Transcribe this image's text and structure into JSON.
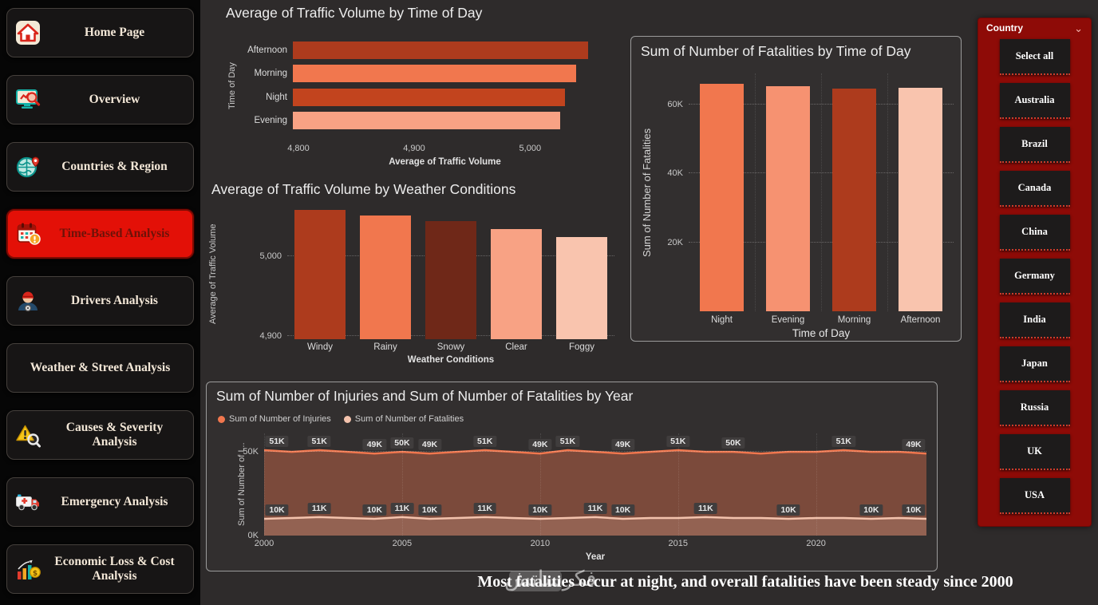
{
  "theme": {
    "background": "#2e2b2b",
    "sidebar_background": "#060606",
    "active_nav_red": "#e31007",
    "slicer_red": "#8e0b07",
    "panel_border": "#9b9b9b",
    "accent_salmon": "#f1774e",
    "accent_dark_rust": "#ad3b1d",
    "accent_pale_pink": "#f9c4ae"
  },
  "sidebar": {
    "items": [
      {
        "label": "Home Page",
        "icon": "home-icon",
        "active": false
      },
      {
        "label": "Overview",
        "icon": "overview-icon",
        "active": false
      },
      {
        "label": "Countries & Region",
        "icon": "globe-icon",
        "active": false
      },
      {
        "label": "Time-Based Analysis",
        "icon": "calendar-icon",
        "active": true
      },
      {
        "label": "Drivers Analysis",
        "icon": "driver-icon",
        "active": false
      },
      {
        "label": "Weather & Street Analysis",
        "icon": "",
        "active": false
      },
      {
        "label": "Causes & Severity Analysis",
        "icon": "warning-icon",
        "active": false
      },
      {
        "label": "Emergency Analysis",
        "icon": "ambulance-icon",
        "active": false
      },
      {
        "label": "Economic Loss & Cost Analysis",
        "icon": "economic-icon",
        "active": false
      }
    ]
  },
  "slicer": {
    "title": "Country",
    "chevron": "⌄",
    "items": [
      "Select all",
      "Australia",
      "Brazil",
      "Canada",
      "China",
      "Germany",
      "India",
      "Japan",
      "Russia",
      "UK",
      "USA"
    ]
  },
  "insight": "Most fatalities occur at night, and overall fatalities have been steady since 2000",
  "watermark": "فكرساتش",
  "chart_data": [
    {
      "id": "traffic_by_time",
      "type": "bar",
      "orientation": "horizontal",
      "title": "Average of Traffic Volume by Time of Day",
      "xlabel": "Average of Traffic Volume",
      "ylabel": "Time of Day",
      "categories": [
        "Afternoon",
        "Morning",
        "Night",
        "Evening"
      ],
      "values": [
        5050,
        5040,
        5031,
        5027
      ],
      "bar_colors": [
        "#ad3b1d",
        "#f1774e",
        "#c2441e",
        "#f8a284"
      ],
      "xlim": [
        4800,
        5053
      ],
      "x_ticks": [
        {
          "v": 4800,
          "label": "4,800"
        },
        {
          "v": 4900,
          "label": "4,900"
        },
        {
          "v": 5000,
          "label": "5,000"
        }
      ]
    },
    {
      "id": "traffic_by_weather",
      "type": "bar",
      "orientation": "vertical",
      "title": "Average of Traffic Volume by Weather Conditions",
      "xlabel": "Weather Conditions",
      "ylabel": "Average of Traffic Volume",
      "categories": [
        "Windy",
        "Rainy",
        "Snowy",
        "Clear",
        "Foggy"
      ],
      "values": [
        5058,
        5051,
        5044,
        5034,
        5024
      ],
      "bar_colors": [
        "#ad3b1d",
        "#f1774e",
        "#6f2818",
        "#f8a284",
        "#f9c4ae"
      ],
      "ylim": [
        4896,
        5060
      ],
      "y_ticks": [
        {
          "v": 5000,
          "label": "5,000"
        },
        {
          "v": 4900,
          "label": "4,900"
        }
      ]
    },
    {
      "id": "fatalities_by_time_of_day",
      "type": "bar",
      "orientation": "vertical",
      "title": "Sum of Number of Fatalities by Time of Day",
      "xlabel": "Time of Day",
      "ylabel": "Sum of Number of Fatalities",
      "categories": [
        "Night",
        "Evening",
        "Morning",
        "Afternoon"
      ],
      "values": [
        66000,
        65200,
        64600,
        64900
      ],
      "bar_colors": [
        "#f1774e",
        "#f69271",
        "#ad3b1d",
        "#f9c4ae"
      ],
      "ylim": [
        0,
        69000
      ],
      "y_ticks": [
        {
          "v": 60000,
          "label": "60K"
        },
        {
          "v": 40000,
          "label": "40K"
        },
        {
          "v": 20000,
          "label": "20K"
        }
      ]
    },
    {
      "id": "injuries_and_fatalities_by_year",
      "type": "area",
      "title": "Sum of Number of Injuries and Sum of Number of Fatalities by Year",
      "xlabel": "Year",
      "ylabel": "Sum of Number of I...",
      "years": [
        2000,
        2001,
        2002,
        2003,
        2004,
        2005,
        2006,
        2007,
        2008,
        2009,
        2010,
        2011,
        2012,
        2013,
        2014,
        2015,
        2016,
        2017,
        2018,
        2019,
        2020,
        2021,
        2022,
        2023,
        2024
      ],
      "x_ticks": [
        2000,
        2005,
        2010,
        2015,
        2020
      ],
      "ylim": [
        0,
        61000
      ],
      "y_ticks": [
        {
          "v": 50000,
          "label": "50K"
        },
        {
          "v": 0,
          "label": "0K"
        }
      ],
      "series": [
        {
          "name": "Sum of Number of Injuries",
          "color": "#f1774e",
          "fill": "rgba(241,119,78,0.38)",
          "values": [
            51000,
            50000,
            51000,
            50000,
            49000,
            50000,
            49000,
            50000,
            51000,
            50000,
            49000,
            51000,
            50000,
            49000,
            50000,
            51000,
            50000,
            50000,
            49000,
            50000,
            50000,
            51000,
            50000,
            50000,
            49000
          ],
          "labels": [
            "51K",
            "",
            "51K",
            "",
            "49K",
            "50K",
            "49K",
            "",
            "51K",
            "",
            "49K",
            "51K",
            "",
            "49K",
            "",
            "51K",
            "",
            "50K",
            "",
            "",
            "",
            "51K",
            "",
            "",
            "49K"
          ]
        },
        {
          "name": "Sum of Number of Fatalities",
          "color": "#f4c3ad",
          "fill": "rgba(244,195,173,0.20)",
          "values": [
            10000,
            10500,
            11000,
            10500,
            10000,
            11000,
            10000,
            10500,
            11000,
            10500,
            10000,
            10500,
            11000,
            10000,
            10500,
            10500,
            11000,
            10500,
            10500,
            10000,
            10500,
            10500,
            10000,
            10500,
            10000
          ],
          "labels": [
            "10K",
            "",
            "11K",
            "",
            "10K",
            "11K",
            "10K",
            "",
            "11K",
            "",
            "10K",
            "",
            "11K",
            "10K",
            "",
            "",
            "11K",
            "",
            "",
            "10K",
            "",
            "",
            "10K",
            "",
            "10K"
          ]
        }
      ]
    }
  ]
}
